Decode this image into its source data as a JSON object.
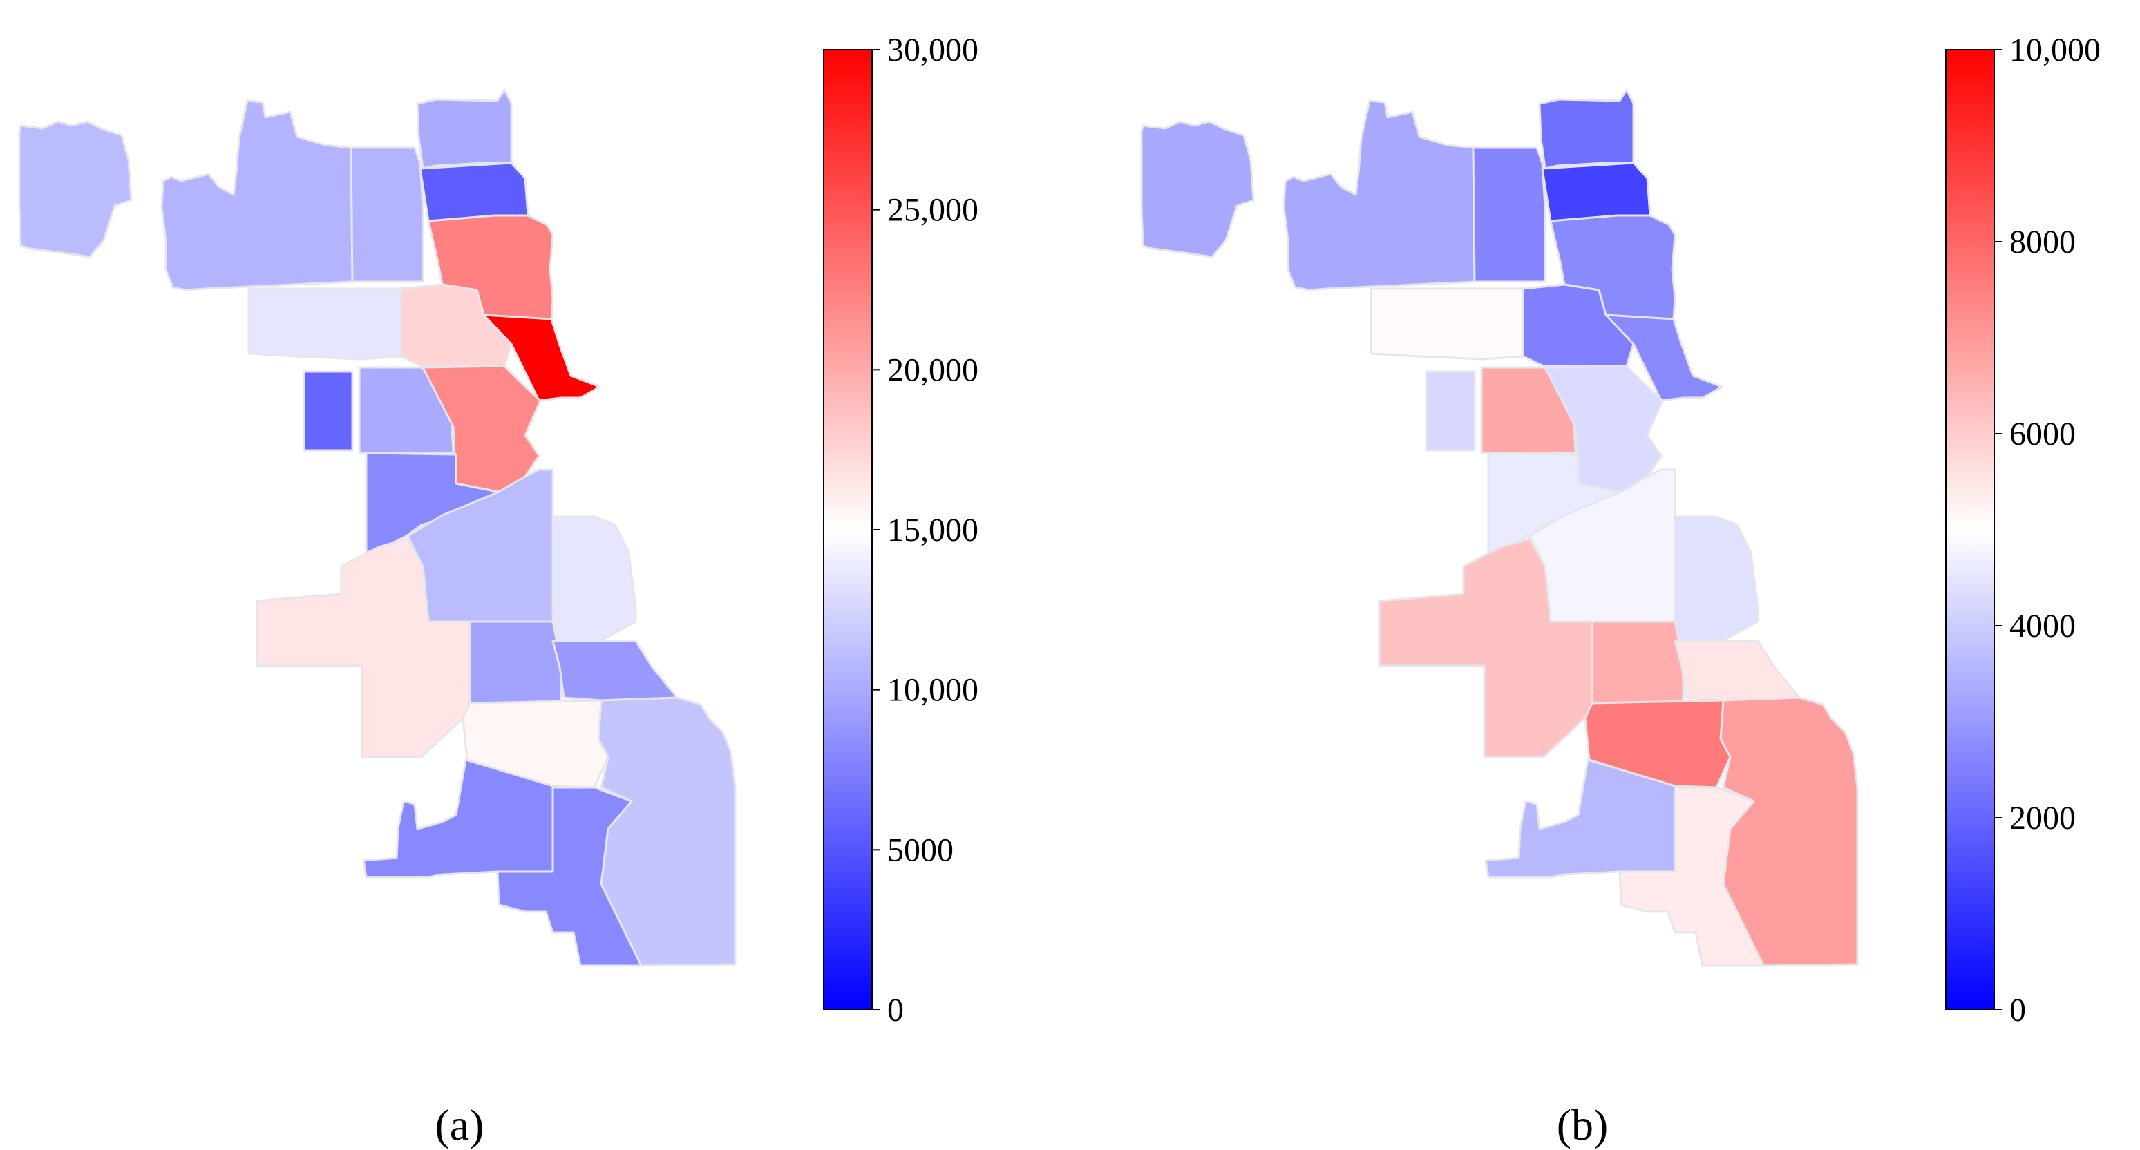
{
  "panels": [
    {
      "label": "(a)",
      "colorbar": {
        "min": 0,
        "max": 30000,
        "colors": [
          "#0000ff",
          "#ffffff",
          "#ff0000"
        ],
        "ticks": [
          {
            "value": 0,
            "label": "0"
          },
          {
            "value": 5000,
            "label": "5000"
          },
          {
            "value": 10000,
            "label": "10,000"
          },
          {
            "value": 15000,
            "label": "15,000"
          },
          {
            "value": 20000,
            "label": "20,000"
          },
          {
            "value": 25000,
            "label": "25,000"
          },
          {
            "value": 30000,
            "label": "30,000"
          }
        ]
      },
      "districts": [
        {
          "id": "far-northwest",
          "value": 11000
        },
        {
          "id": "northwest-a",
          "value": 10500
        },
        {
          "id": "northwest-b",
          "value": 10500
        },
        {
          "id": "rogers-park",
          "value": 10000
        },
        {
          "id": "edgewater",
          "value": 5500
        },
        {
          "id": "lakeview",
          "value": 22500
        },
        {
          "id": "irving-park",
          "value": 13500
        },
        {
          "id": "logan-square",
          "value": 17500
        },
        {
          "id": "near-north",
          "value": 30000
        },
        {
          "id": "austin",
          "value": 6000
        },
        {
          "id": "humboldt",
          "value": 10000
        },
        {
          "id": "central",
          "value": 22000
        },
        {
          "id": "west-side",
          "value": 8000
        },
        {
          "id": "near-south",
          "value": 11000
        },
        {
          "id": "hyde-park",
          "value": 13500
        },
        {
          "id": "southwest",
          "value": 16500
        },
        {
          "id": "englewood",
          "value": 9500
        },
        {
          "id": "south-shore",
          "value": 9000
        },
        {
          "id": "auburn",
          "value": 15500
        },
        {
          "id": "south-chicago",
          "value": 11500
        },
        {
          "id": "morgan-park",
          "value": 8000
        },
        {
          "id": "calumet",
          "value": 8000
        }
      ]
    },
    {
      "label": "(b)",
      "colorbar": {
        "min": 0,
        "max": 10000,
        "colors": [
          "#0000ff",
          "#ffffff",
          "#ff0000"
        ],
        "ticks": [
          {
            "value": 0,
            "label": "0"
          },
          {
            "value": 2000,
            "label": "2000"
          },
          {
            "value": 4000,
            "label": "4000"
          },
          {
            "value": 6000,
            "label": "6000"
          },
          {
            "value": 8000,
            "label": "8000"
          },
          {
            "value": 10000,
            "label": "10,000"
          }
        ]
      },
      "districts": [
        {
          "id": "far-northwest",
          "value": 3300
        },
        {
          "id": "northwest-a",
          "value": 3300
        },
        {
          "id": "northwest-b",
          "value": 2600
        },
        {
          "id": "rogers-park",
          "value": 2200
        },
        {
          "id": "edgewater",
          "value": 1300
        },
        {
          "id": "lakeview",
          "value": 2700
        },
        {
          "id": "irving-park",
          "value": 5100
        },
        {
          "id": "logan-square",
          "value": 2500
        },
        {
          "id": "near-north",
          "value": 2700
        },
        {
          "id": "austin",
          "value": 4200
        },
        {
          "id": "humboldt",
          "value": 6700
        },
        {
          "id": "central",
          "value": 4300
        },
        {
          "id": "west-side",
          "value": 4600
        },
        {
          "id": "near-south",
          "value": 4800
        },
        {
          "id": "hyde-park",
          "value": 4400
        },
        {
          "id": "southwest",
          "value": 6200
        },
        {
          "id": "englewood",
          "value": 6600
        },
        {
          "id": "south-shore",
          "value": 5500
        },
        {
          "id": "auburn",
          "value": 7600
        },
        {
          "id": "south-chicago",
          "value": 6900
        },
        {
          "id": "morgan-park",
          "value": 3600
        },
        {
          "id": "calumet",
          "value": 5400
        }
      ]
    }
  ]
}
